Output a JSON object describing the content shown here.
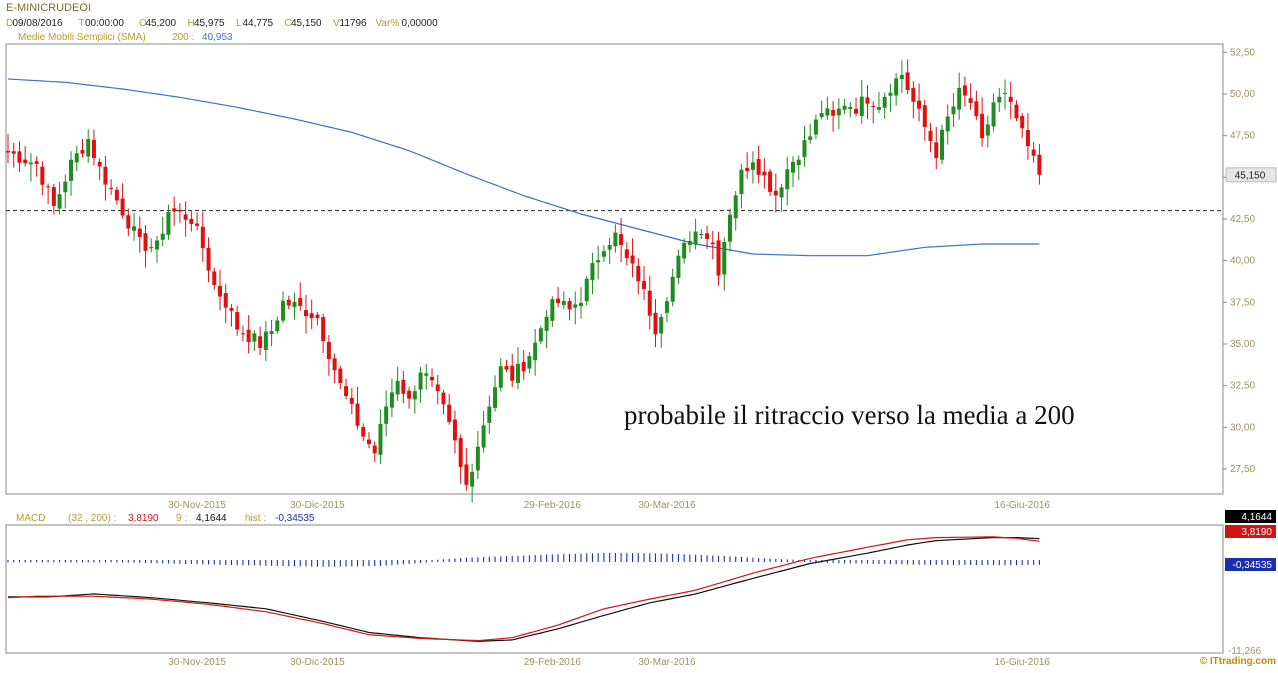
{
  "header": {
    "symbol": "E-MINICRUDEOI",
    "quote": [
      {
        "label": "D",
        "value": "09/08/2016"
      },
      {
        "label": "T",
        "value": "00:00:00"
      },
      {
        "label": "O",
        "value": "45,200"
      },
      {
        "label": "H",
        "value": "45,975"
      },
      {
        "label": "L",
        "value": "44,775"
      },
      {
        "label": "C",
        "value": "45,150"
      },
      {
        "label": "V",
        "value": "11796"
      },
      {
        "label": "Var%",
        "value": "0,00000"
      }
    ],
    "sma_label": "Medie Mobili Semplici (SMA)",
    "sma_period": "200 :",
    "sma_value": "40,953"
  },
  "macd_header": {
    "label": "MACD",
    "params": "(32 , 200) :",
    "macd_value": "3,8190",
    "signal_period": "9 :",
    "signal_value": "4,1644",
    "hist_label": "hist :",
    "hist_value": "-0,34535"
  },
  "x_labels": [
    "30-Nov-2015",
    "30-Dic-2015",
    "29-Feb-2016",
    "30-Mar-2016",
    "16-Giu-2016"
  ],
  "price_axis": {
    "ticks": [
      "52,50",
      "50,00",
      "47,50",
      "45,00",
      "42,50",
      "40,00",
      "37,50",
      "35,00",
      "32,50",
      "30,00",
      "27,50"
    ],
    "ylim": [
      26.0,
      53.0
    ],
    "last_price_tag": "45,150"
  },
  "macd_axis": {
    "bottom_label": "-11,266",
    "tags": {
      "signal": "4,1644",
      "macd": "3,8190",
      "hist": "-0,34535"
    }
  },
  "annotation": "probabile il ritraccio verso la media a 200",
  "watermark": "© ITtrading.com",
  "colors": {
    "up": "#1e8c1e",
    "down": "#e01010",
    "sma": "#3a6fd0",
    "macd": "#d01515",
    "signal": "#111111",
    "hist": "#1a2fb0",
    "axis": "#a09060"
  },
  "chart_data": [
    {
      "type": "candlestick",
      "title": "E-MINICRUDEOI",
      "xlabel": "",
      "ylabel": "",
      "ylim": [
        26.0,
        53.0
      ],
      "date_labels": [
        "30-Nov-2015",
        "30-Dic-2015",
        "29-Feb-2016",
        "30-Mar-2016",
        "16-Giu-2016"
      ],
      "date_label_bar_index": [
        33,
        54,
        95,
        115,
        177
      ],
      "close_path": [
        [
          0,
          46.5
        ],
        [
          5,
          45.8
        ],
        [
          8,
          43.2
        ],
        [
          11,
          45.8
        ],
        [
          14,
          47.3
        ],
        [
          16,
          45.5
        ],
        [
          20,
          43.0
        ],
        [
          23,
          41.0
        ],
        [
          26,
          40.8
        ],
        [
          28,
          43.0
        ],
        [
          30,
          42.8
        ],
        [
          32,
          42.5
        ],
        [
          34,
          40.8
        ],
        [
          36,
          38.5
        ],
        [
          38,
          37.5
        ],
        [
          40,
          36.0
        ],
        [
          42,
          35.5
        ],
        [
          44,
          35.0
        ],
        [
          46,
          35.8
        ],
        [
          48,
          37.5
        ],
        [
          50,
          37.3
        ],
        [
          52,
          37.0
        ],
        [
          54,
          36.6
        ],
        [
          56,
          34.5
        ],
        [
          58,
          32.5
        ],
        [
          60,
          31.0
        ],
        [
          62,
          29.5
        ],
        [
          64,
          28.5
        ],
        [
          66,
          31.3
        ],
        [
          68,
          33.0
        ],
        [
          70,
          31.5
        ],
        [
          72,
          33.5
        ],
        [
          74,
          32.5
        ],
        [
          76,
          31.0
        ],
        [
          78,
          29.0
        ],
        [
          79,
          27.5
        ],
        [
          80,
          26.5
        ],
        [
          82,
          29.0
        ],
        [
          84,
          31.5
        ],
        [
          86,
          33.5
        ],
        [
          88,
          33.0
        ],
        [
          90,
          33.8
        ],
        [
          92,
          35.0
        ],
        [
          94,
          37.0
        ],
        [
          96,
          37.5
        ],
        [
          98,
          37.0
        ],
        [
          100,
          37.8
        ],
        [
          102,
          39.5
        ],
        [
          104,
          41.0
        ],
        [
          106,
          41.5
        ],
        [
          108,
          40.0
        ],
        [
          110,
          39.0
        ],
        [
          112,
          37.0
        ],
        [
          113,
          36.0
        ],
        [
          115,
          38.0
        ],
        [
          117,
          40.0
        ],
        [
          119,
          41.5
        ],
        [
          121,
          42.0
        ],
        [
          123,
          41.0
        ],
        [
          124,
          39.5
        ],
        [
          126,
          43.0
        ],
        [
          128,
          45.2
        ],
        [
          130,
          46.2
        ],
        [
          132,
          45.0
        ],
        [
          134,
          44.0
        ],
        [
          136,
          45.5
        ],
        [
          138,
          46.5
        ],
        [
          140,
          47.5
        ],
        [
          142,
          49.0
        ],
        [
          144,
          48.5
        ],
        [
          146,
          49.5
        ],
        [
          148,
          49.2
        ],
        [
          150,
          49.8
        ],
        [
          152,
          49.5
        ],
        [
          154,
          50.5
        ],
        [
          156,
          51.2
        ],
        [
          158,
          49.5
        ],
        [
          160,
          48.0
        ],
        [
          162,
          46.5
        ],
        [
          164,
          48.5
        ],
        [
          166,
          50.0
        ],
        [
          168,
          49.5
        ],
        [
          170,
          47.0
        ],
        [
          172,
          49.5
        ],
        [
          174,
          49.8
        ],
        [
          176,
          48.5
        ],
        [
          177,
          47.5
        ],
        [
          179,
          46.0
        ],
        [
          180,
          45.15
        ]
      ],
      "series": [
        {
          "name": "Medie Mobili Semplici (SMA) 200",
          "points": [
            [
              0,
              50.9
            ],
            [
              10,
              50.7
            ],
            [
              20,
              50.3
            ],
            [
              30,
              49.8
            ],
            [
              40,
              49.2
            ],
            [
              50,
              48.5
            ],
            [
              60,
              47.7
            ],
            [
              70,
              46.6
            ],
            [
              80,
              45.2
            ],
            [
              90,
              43.9
            ],
            [
              100,
              42.8
            ],
            [
              110,
              41.9
            ],
            [
              120,
              41.0
            ],
            [
              130,
              40.4
            ],
            [
              140,
              40.3
            ],
            [
              150,
              40.3
            ],
            [
              160,
              40.8
            ],
            [
              170,
              41.0
            ],
            [
              180,
              41.0
            ]
          ]
        }
      ],
      "reference_line": 43.0,
      "last_price": 45.15
    },
    {
      "type": "line",
      "title": "MACD",
      "xlabel": "",
      "ylabel": "",
      "ylim": [
        -11.266,
        6.0
      ],
      "series": [
        {
          "name": "MACD",
          "color": "#d01515",
          "points": [
            [
              0,
              -3.8
            ],
            [
              5,
              -3.6
            ],
            [
              15,
              -3.6
            ],
            [
              25,
              -4.0
            ],
            [
              35,
              -4.7
            ],
            [
              45,
              -5.7
            ],
            [
              55,
              -7.3
            ],
            [
              63,
              -8.8
            ],
            [
              72,
              -9.3
            ],
            [
              82,
              -9.6
            ],
            [
              88,
              -9.2
            ],
            [
              96,
              -7.5
            ],
            [
              104,
              -5.3
            ],
            [
              112,
              -4.0
            ],
            [
              120,
              -2.8
            ],
            [
              130,
              -0.5
            ],
            [
              140,
              1.5
            ],
            [
              150,
              3.0
            ],
            [
              157,
              4.0
            ],
            [
              162,
              4.3
            ],
            [
              172,
              4.4
            ],
            [
              176,
              4.2
            ],
            [
              180,
              3.82
            ]
          ]
        },
        {
          "name": "Signal 9",
          "points": [
            [
              0,
              -3.7
            ],
            [
              7,
              -3.7
            ],
            [
              15,
              -3.3
            ],
            [
              25,
              -3.8
            ],
            [
              35,
              -4.5
            ],
            [
              45,
              -5.3
            ],
            [
              55,
              -7.0
            ],
            [
              63,
              -8.5
            ],
            [
              72,
              -9.2
            ],
            [
              82,
              -9.7
            ],
            [
              88,
              -9.5
            ],
            [
              96,
              -8.0
            ],
            [
              104,
              -6.2
            ],
            [
              112,
              -4.5
            ],
            [
              120,
              -3.3
            ],
            [
              130,
              -1.2
            ],
            [
              140,
              0.8
            ],
            [
              150,
              2.2
            ],
            [
              157,
              3.3
            ],
            [
              162,
              3.9
            ],
            [
              172,
              4.3
            ],
            [
              176,
              4.3
            ],
            [
              180,
              4.16
            ]
          ]
        },
        {
          "name": "hist",
          "points": [
            [
              0,
              -0.05
            ],
            [
              20,
              -0.05
            ],
            [
              40,
              -0.4
            ],
            [
              55,
              -0.6
            ],
            [
              65,
              -0.5
            ],
            [
              80,
              0.3
            ],
            [
              95,
              0.7
            ],
            [
              105,
              0.9
            ],
            [
              115,
              0.8
            ],
            [
              125,
              0.5
            ],
            [
              135,
              0.1
            ],
            [
              145,
              -0.15
            ],
            [
              160,
              -0.35
            ],
            [
              175,
              -0.4
            ],
            [
              180,
              -0.345
            ]
          ]
        }
      ],
      "macd_value": 3.819,
      "signal_value": 4.1644,
      "hist_value": -0.34535
    }
  ]
}
